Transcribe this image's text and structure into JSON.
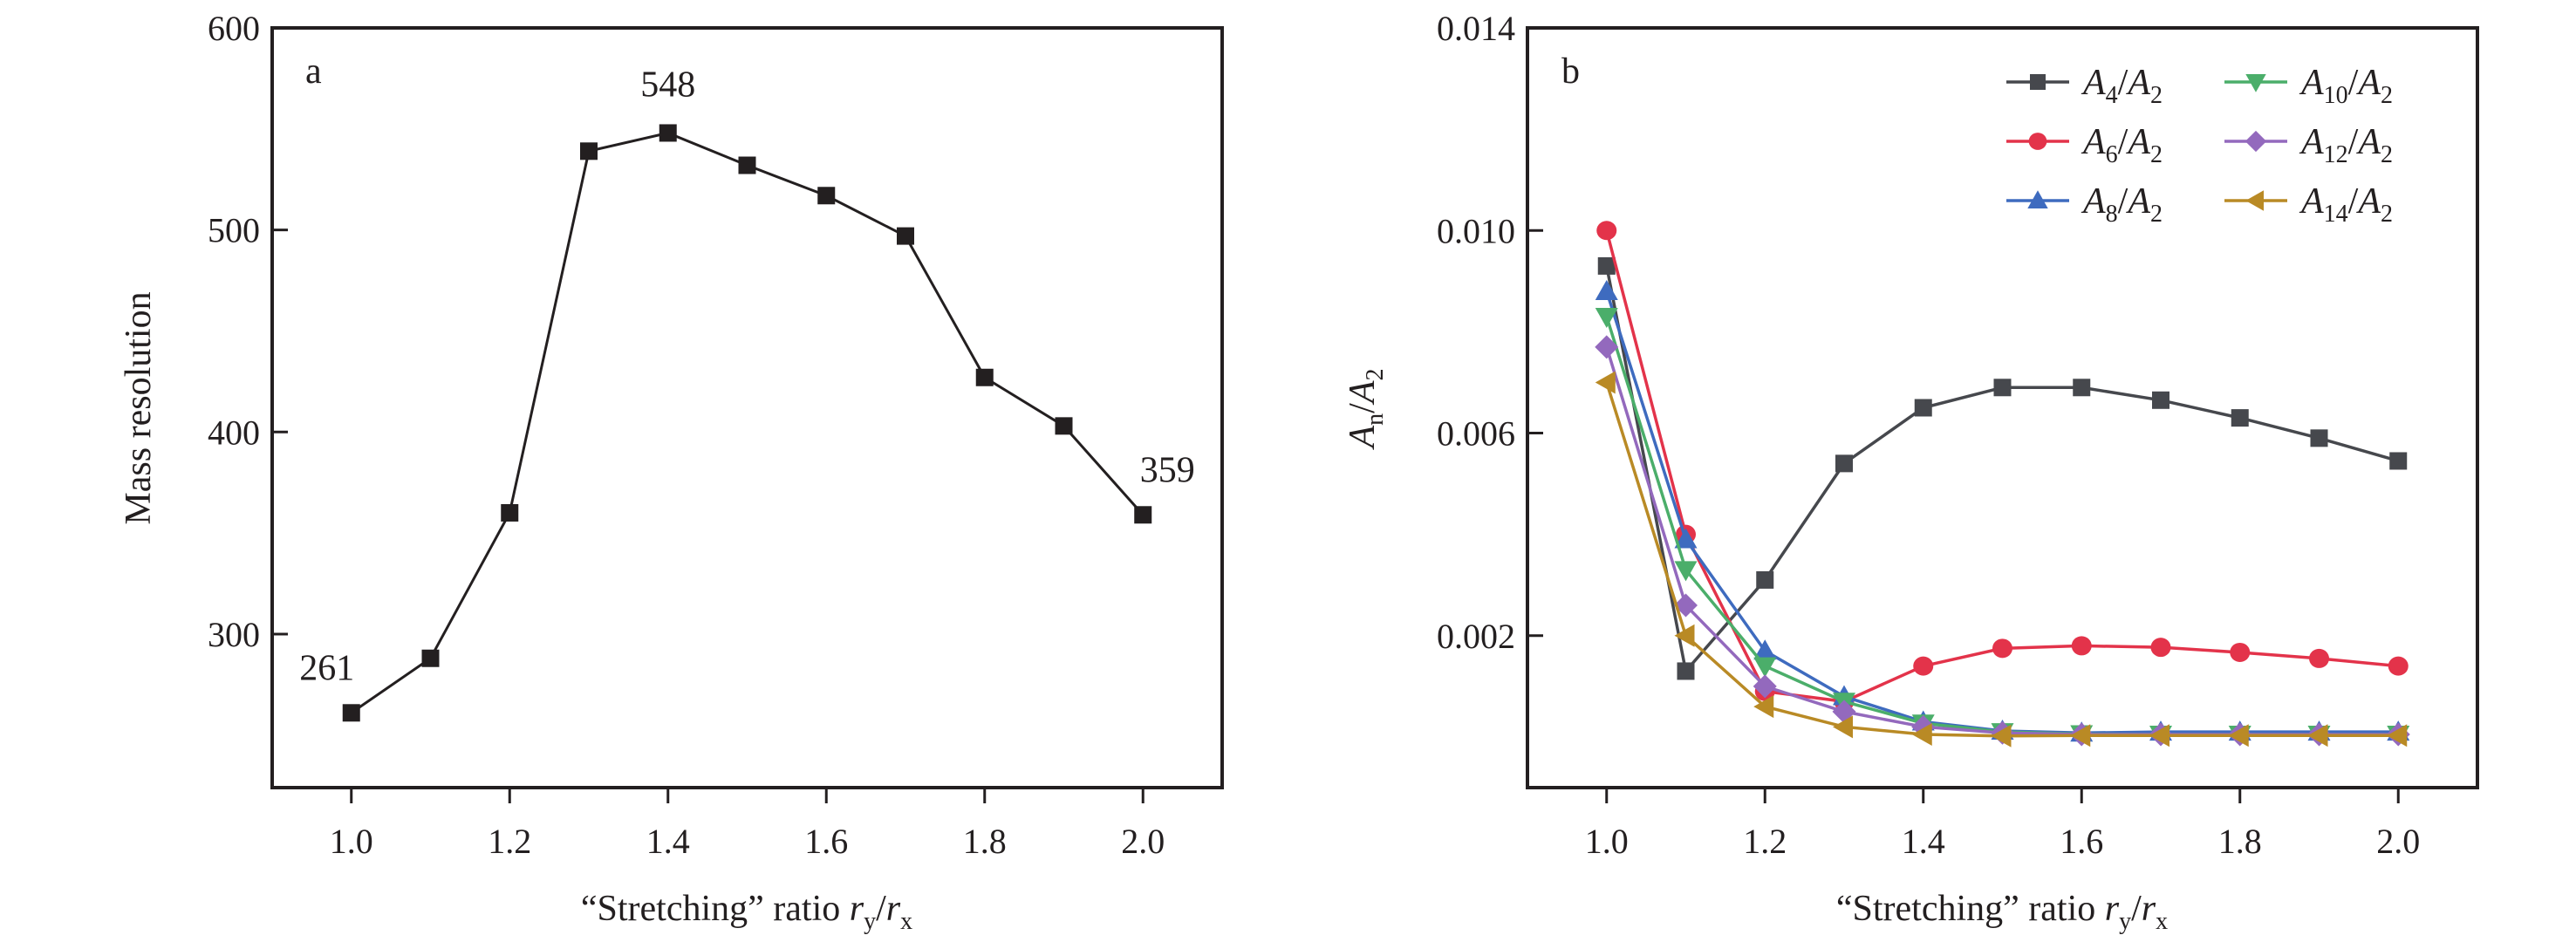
{
  "chart_data": [
    {
      "type": "line",
      "panel_label": "a",
      "title": "",
      "xlabel": "“Stretching” ratio r_y/r_x",
      "xlabel_parts": {
        "prefix": "“Stretching” ratio ",
        "var1": "r",
        "sub1": "y",
        "slash": "/",
        "var2": "r",
        "sub2": "x"
      },
      "ylabel": "Mass resolution",
      "xlim": [
        0.9,
        2.1
      ],
      "ylim": [
        224,
        600
      ],
      "xticks": [
        1.0,
        1.2,
        1.4,
        1.6,
        1.8,
        2.0
      ],
      "xtick_labels": [
        "1.0",
        "1.2",
        "1.4",
        "1.6",
        "1.8",
        "2.0"
      ],
      "yticks": [
        300,
        400,
        500,
        600
      ],
      "ytick_labels": [
        "300",
        "400",
        "500",
        "600"
      ],
      "grid": false,
      "x": [
        1.0,
        1.1,
        1.2,
        1.3,
        1.4,
        1.5,
        1.6,
        1.7,
        1.8,
        1.9,
        2.0
      ],
      "series": [
        {
          "name": "Mass resolution",
          "color": "#231f20",
          "marker": "square",
          "values": [
            261,
            288,
            360,
            539,
            548,
            532,
            517,
            497,
            427,
            403,
            359
          ]
        }
      ],
      "annotations": [
        {
          "text": "261",
          "x": 1.0,
          "y": 261
        },
        {
          "text": "548",
          "x": 1.4,
          "y": 548
        },
        {
          "text": "359",
          "x": 2.0,
          "y": 359
        }
      ]
    },
    {
      "type": "line",
      "panel_label": "b",
      "title": "",
      "xlabel": "“Stretching” ratio r_y/r_x",
      "xlabel_parts": {
        "prefix": "“Stretching” ratio ",
        "var1": "r",
        "sub1": "y",
        "slash": "/",
        "var2": "r",
        "sub2": "x"
      },
      "ylabel": "A_n/A_2",
      "ylabel_parts": {
        "var1": "A",
        "sub1": "n",
        "slash": "/",
        "var2": "A",
        "sub2": "2"
      },
      "xlim": [
        0.9,
        2.1
      ],
      "ylim": [
        -0.001,
        0.014
      ],
      "xticks": [
        1.0,
        1.2,
        1.4,
        1.6,
        1.8,
        2.0
      ],
      "xtick_labels": [
        "1.0",
        "1.2",
        "1.4",
        "1.6",
        "1.8",
        "2.0"
      ],
      "yticks": [
        0.002,
        0.006,
        0.01,
        0.014
      ],
      "ytick_labels": [
        "0.002",
        "0.006",
        "0.010",
        "0.014"
      ],
      "grid": false,
      "legend_position": "top-right",
      "x": [
        1.0,
        1.1,
        1.2,
        1.3,
        1.4,
        1.5,
        1.6,
        1.7,
        1.8,
        1.9,
        2.0
      ],
      "series": [
        {
          "name": "A4/A2",
          "var": "A",
          "sub": "4",
          "den": "A",
          "den_sub": "2",
          "color": "#46484d",
          "marker": "square",
          "values": [
            0.0093,
            0.0013,
            0.0031,
            0.0054,
            0.0065,
            0.0069,
            0.0069,
            0.00665,
            0.0063,
            0.0059,
            0.00545
          ]
        },
        {
          "name": "A6/A2",
          "var": "A",
          "sub": "6",
          "den": "A",
          "den_sub": "2",
          "color": "#e3334a",
          "marker": "circle",
          "values": [
            0.01,
            0.004,
            0.0009,
            0.0007,
            0.0014,
            0.00175,
            0.0018,
            0.00177,
            0.00167,
            0.00155,
            0.0014
          ]
        },
        {
          "name": "A8/A2",
          "var": "A",
          "sub": "8",
          "den": "A",
          "den_sub": "2",
          "color": "#3e6bbf",
          "marker": "triangle-up",
          "values": [
            0.0088,
            0.0039,
            0.0017,
            0.0008,
            0.0003,
            0.00012,
            8e-05,
            0.0001,
            0.0001,
            0.0001,
            0.0001
          ]
        },
        {
          "name": "A10/A2",
          "var": "A",
          "sub": "10",
          "den": "A",
          "den_sub": "2",
          "color": "#4bae6a",
          "marker": "triangle-down",
          "values": [
            0.0083,
            0.0033,
            0.0014,
            0.0007,
            0.00027,
            0.0001,
            6e-05,
            5e-05,
            5e-05,
            5e-05,
            5e-05
          ]
        },
        {
          "name": "A12/A2",
          "var": "A",
          "sub": "12",
          "den": "A",
          "den_sub": "2",
          "color": "#9369bd",
          "marker": "diamond",
          "values": [
            0.0077,
            0.0026,
            0.001,
            0.0005,
            0.0002,
            8e-05,
            5e-05,
            5e-05,
            5e-05,
            5e-05,
            5e-05
          ]
        },
        {
          "name": "A14/A2",
          "var": "A",
          "sub": "14",
          "den": "A",
          "den_sub": "2",
          "color": "#b98a25",
          "marker": "triangle-left",
          "values": [
            0.007,
            0.002,
            0.0006,
            0.0002,
            5e-05,
            2e-05,
            3e-05,
            3e-05,
            3e-05,
            3e-05,
            3e-05
          ]
        }
      ]
    }
  ]
}
